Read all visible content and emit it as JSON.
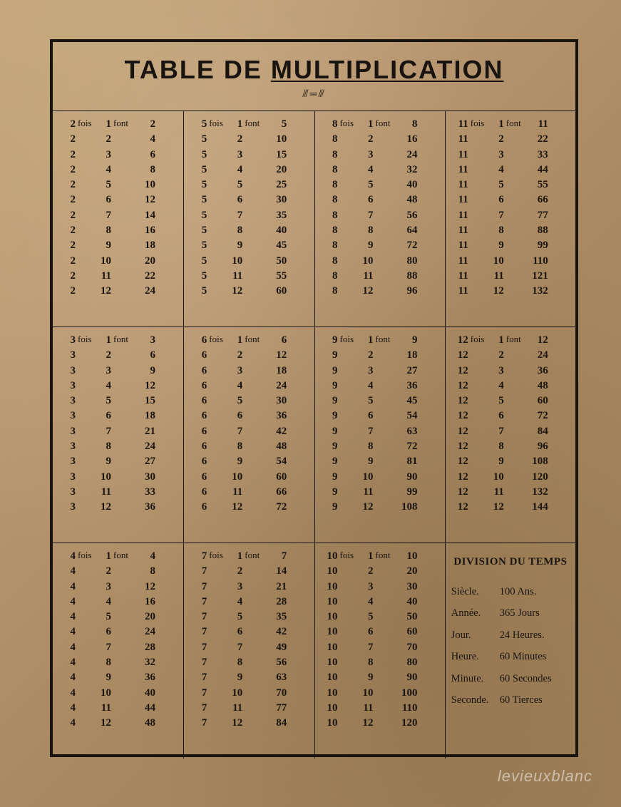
{
  "title_prefix": "TABLE DE ",
  "title_underlined": "MULTIPLICATION",
  "colors": {
    "ink": "#1a1410",
    "paper_light": "#c4a578",
    "paper_dark": "#9f8058",
    "border": "#1a1410"
  },
  "typography": {
    "title_fontsize": 36,
    "body_fontsize": 15,
    "division_title_fontsize": 15,
    "division_body_fontsize": 14.5,
    "font_family": "Georgia, serif",
    "title_font_family": "Arial, sans-serif"
  },
  "layout": {
    "columns": 4,
    "rows": 3,
    "frame_border_width": 4,
    "cell_border_width": 1.5
  },
  "word_fois": "fois",
  "word_font": "font",
  "tables": {
    "t2": {
      "base": 2,
      "rows": [
        [
          1,
          2
        ],
        [
          2,
          4
        ],
        [
          3,
          6
        ],
        [
          4,
          8
        ],
        [
          5,
          10
        ],
        [
          6,
          12
        ],
        [
          7,
          14
        ],
        [
          8,
          16
        ],
        [
          9,
          18
        ],
        [
          10,
          20
        ],
        [
          11,
          22
        ],
        [
          12,
          24
        ]
      ]
    },
    "t3": {
      "base": 3,
      "rows": [
        [
          1,
          3
        ],
        [
          2,
          6
        ],
        [
          3,
          9
        ],
        [
          4,
          12
        ],
        [
          5,
          15
        ],
        [
          6,
          18
        ],
        [
          7,
          21
        ],
        [
          8,
          24
        ],
        [
          9,
          27
        ],
        [
          10,
          30
        ],
        [
          11,
          33
        ],
        [
          12,
          36
        ]
      ]
    },
    "t4": {
      "base": 4,
      "rows": [
        [
          1,
          4
        ],
        [
          2,
          8
        ],
        [
          3,
          12
        ],
        [
          4,
          16
        ],
        [
          5,
          20
        ],
        [
          6,
          24
        ],
        [
          7,
          28
        ],
        [
          8,
          32
        ],
        [
          9,
          36
        ],
        [
          10,
          40
        ],
        [
          11,
          44
        ],
        [
          12,
          48
        ]
      ]
    },
    "t5": {
      "base": 5,
      "rows": [
        [
          1,
          5
        ],
        [
          2,
          10
        ],
        [
          3,
          15
        ],
        [
          4,
          20
        ],
        [
          5,
          25
        ],
        [
          6,
          30
        ],
        [
          7,
          35
        ],
        [
          8,
          40
        ],
        [
          9,
          45
        ],
        [
          10,
          50
        ],
        [
          11,
          55
        ],
        [
          12,
          60
        ]
      ]
    },
    "t6": {
      "base": 6,
      "rows": [
        [
          1,
          6
        ],
        [
          2,
          12
        ],
        [
          3,
          18
        ],
        [
          4,
          24
        ],
        [
          5,
          30
        ],
        [
          6,
          36
        ],
        [
          7,
          42
        ],
        [
          8,
          48
        ],
        [
          9,
          54
        ],
        [
          10,
          60
        ],
        [
          11,
          66
        ],
        [
          12,
          72
        ]
      ]
    },
    "t7": {
      "base": 7,
      "rows": [
        [
          1,
          7
        ],
        [
          2,
          14
        ],
        [
          3,
          21
        ],
        [
          4,
          28
        ],
        [
          5,
          35
        ],
        [
          6,
          42
        ],
        [
          7,
          49
        ],
        [
          8,
          56
        ],
        [
          9,
          63
        ],
        [
          10,
          70
        ],
        [
          11,
          77
        ],
        [
          12,
          84
        ]
      ]
    },
    "t8": {
      "base": 8,
      "rows": [
        [
          1,
          8
        ],
        [
          2,
          16
        ],
        [
          3,
          24
        ],
        [
          4,
          32
        ],
        [
          5,
          40
        ],
        [
          6,
          48
        ],
        [
          7,
          56
        ],
        [
          8,
          64
        ],
        [
          9,
          72
        ],
        [
          10,
          80
        ],
        [
          11,
          88
        ],
        [
          12,
          96
        ]
      ]
    },
    "t9": {
      "base": 9,
      "rows": [
        [
          1,
          9
        ],
        [
          2,
          18
        ],
        [
          3,
          27
        ],
        [
          4,
          36
        ],
        [
          5,
          45
        ],
        [
          6,
          54
        ],
        [
          7,
          63
        ],
        [
          8,
          72
        ],
        [
          9,
          81
        ],
        [
          10,
          90
        ],
        [
          11,
          99
        ],
        [
          12,
          108
        ]
      ]
    },
    "t10": {
      "base": 10,
      "rows": [
        [
          1,
          10
        ],
        [
          2,
          20
        ],
        [
          3,
          30
        ],
        [
          4,
          40
        ],
        [
          5,
          50
        ],
        [
          6,
          60
        ],
        [
          7,
          70
        ],
        [
          8,
          80
        ],
        [
          9,
          90
        ],
        [
          10,
          100
        ],
        [
          11,
          110
        ],
        [
          12,
          120
        ]
      ]
    },
    "t11": {
      "base": 11,
      "rows": [
        [
          1,
          11
        ],
        [
          2,
          22
        ],
        [
          3,
          33
        ],
        [
          4,
          44
        ],
        [
          5,
          55
        ],
        [
          6,
          66
        ],
        [
          7,
          77
        ],
        [
          8,
          88
        ],
        [
          9,
          99
        ],
        [
          10,
          110
        ],
        [
          11,
          121
        ],
        [
          12,
          132
        ]
      ]
    },
    "t12": {
      "base": 12,
      "rows": [
        [
          1,
          12
        ],
        [
          2,
          24
        ],
        [
          3,
          36
        ],
        [
          4,
          48
        ],
        [
          5,
          60
        ],
        [
          6,
          72
        ],
        [
          7,
          84
        ],
        [
          8,
          96
        ],
        [
          9,
          108
        ],
        [
          10,
          120
        ],
        [
          11,
          132
        ],
        [
          12,
          144
        ]
      ]
    }
  },
  "grid_order": [
    [
      "t2",
      "t5",
      "t8",
      "t11"
    ],
    [
      "t3",
      "t6",
      "t9",
      "t12"
    ],
    [
      "t4",
      "t7",
      "t10",
      "division"
    ]
  ],
  "division": {
    "title": "DIVISION DU TEMPS",
    "rows": [
      {
        "unit": "Siècle.",
        "val": "100 Ans."
      },
      {
        "unit": "Année.",
        "val": "365 Jours"
      },
      {
        "unit": "Jour.",
        "val": "24 Heures."
      },
      {
        "unit": "Heure.",
        "val": "60 Minutes"
      },
      {
        "unit": "Minute.",
        "val": "60 Secondes"
      },
      {
        "unit": "Seconde.",
        "val": "60 Tierces"
      }
    ]
  },
  "watermark": "levieuxblanc"
}
